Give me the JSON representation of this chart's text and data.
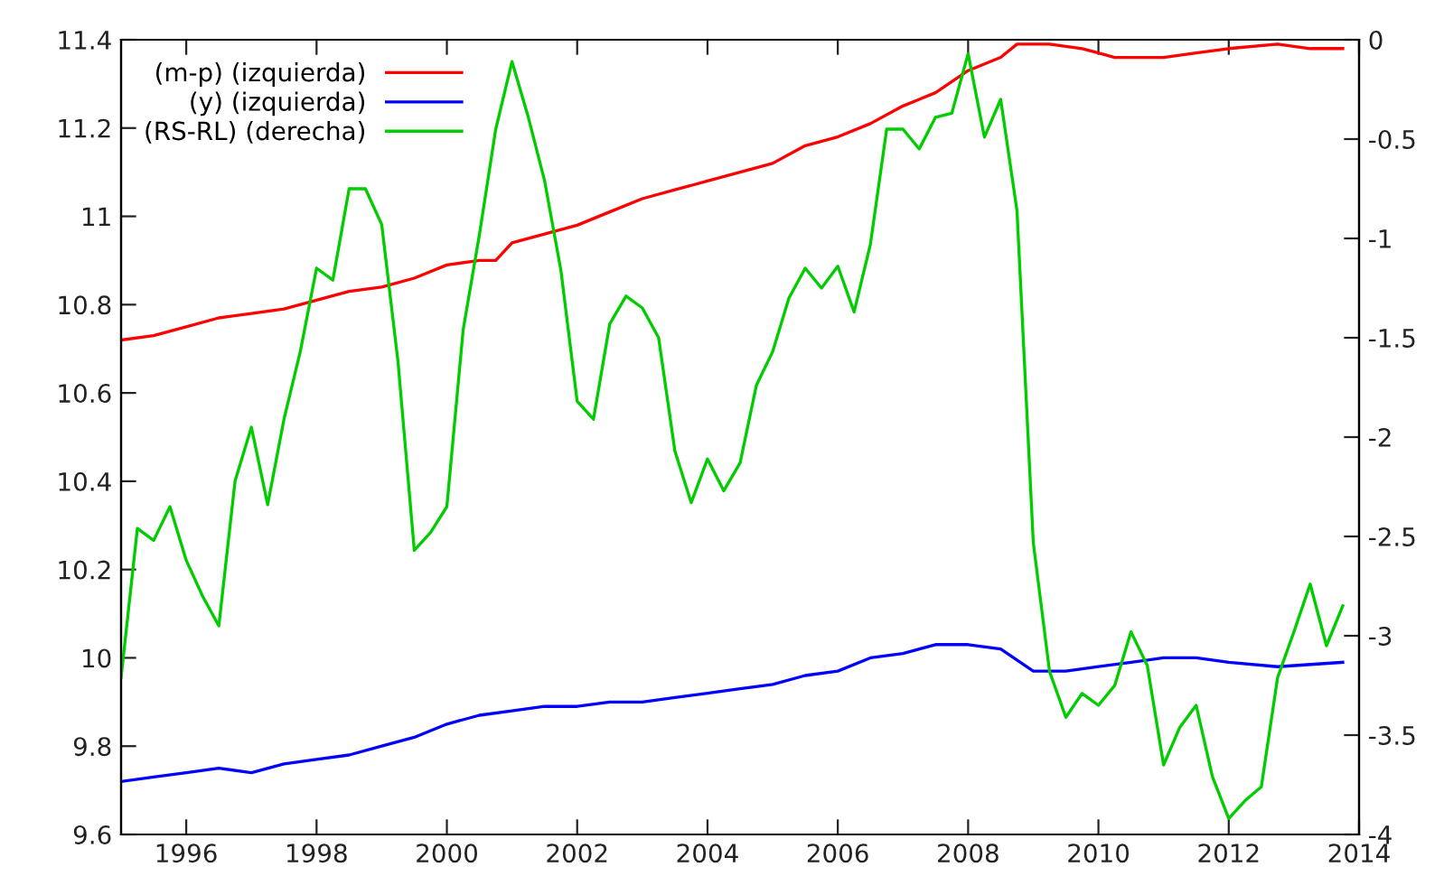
{
  "chart_data": {
    "type": "line",
    "legend": "top left",
    "grid": false,
    "xlim": [
      1995,
      2014
    ],
    "xticks": [
      1996,
      1998,
      2000,
      2002,
      2004,
      2006,
      2008,
      2010,
      2012,
      2014
    ],
    "ylim": [
      9.6,
      11.4
    ],
    "yticks": [
      9.6,
      9.8,
      10,
      10.2,
      10.4,
      10.6,
      10.8,
      11,
      11.2,
      11.4
    ],
    "y2lim": [
      -4,
      0
    ],
    "y2ticks": [
      -4,
      -3.5,
      -3,
      -2.5,
      -2,
      -1.5,
      -1,
      -0.5,
      0
    ],
    "series": [
      {
        "name": "(m-p) (izquierda)",
        "color": "#ff0000",
        "x": [
          1995,
          1995.5,
          1996,
          1996.5,
          1997,
          1997.5,
          1998,
          1998.5,
          1999,
          1999.5,
          2000,
          2000.5,
          2000.75,
          2001,
          2001.5,
          2002,
          2002.5,
          2003,
          2003.5,
          2004,
          2004.5,
          2005,
          2005.5,
          2006,
          2006.5,
          2007,
          2007.5,
          2008,
          2008.5,
          2008.75,
          2009.25,
          2009.75,
          2010,
          2010.25,
          2011,
          2011.5,
          2012,
          2012.75,
          2013.25,
          2013.75
        ],
        "values": [
          10.72,
          10.73,
          10.75,
          10.77,
          10.78,
          10.79,
          10.81,
          10.83,
          10.84,
          10.86,
          10.89,
          10.9,
          10.9,
          10.94,
          10.96,
          10.98,
          11.01,
          11.04,
          11.06,
          11.08,
          11.1,
          11.12,
          11.16,
          11.18,
          11.21,
          11.25,
          11.28,
          11.33,
          11.36,
          11.39,
          11.39,
          11.38,
          11.37,
          11.36,
          11.36,
          11.37,
          11.38,
          11.39,
          11.38,
          11.38
        ]
      },
      {
        "name": "(y) (izquierda)",
        "color": "#0000ff",
        "x": [
          1995,
          1995.5,
          1996,
          1996.5,
          1997,
          1997.5,
          1998,
          1998.5,
          1999,
          1999.5,
          2000,
          2000.5,
          2001,
          2001.5,
          2002,
          2002.5,
          2003,
          2003.5,
          2004,
          2004.5,
          2005,
          2005.5,
          2006,
          2006.5,
          2007,
          2007.5,
          2008,
          2008.5,
          2009,
          2009.5,
          2010,
          2010.5,
          2011,
          2011.5,
          2012,
          2012.75,
          2013.75
        ],
        "values": [
          9.72,
          9.73,
          9.74,
          9.75,
          9.74,
          9.76,
          9.77,
          9.78,
          9.8,
          9.82,
          9.85,
          9.87,
          9.88,
          9.89,
          9.89,
          9.9,
          9.9,
          9.91,
          9.92,
          9.93,
          9.94,
          9.96,
          9.97,
          10.0,
          10.01,
          10.03,
          10.03,
          10.02,
          9.97,
          9.97,
          9.98,
          9.99,
          10.0,
          10.0,
          9.99,
          9.98,
          9.99
        ]
      },
      {
        "name": "(RS-RL) (derecha)",
        "color": "#00cc00",
        "axis": "y2",
        "x": [
          1995,
          1995.25,
          1995.5,
          1995.75,
          1996,
          1996.25,
          1996.5,
          1996.75,
          1997,
          1997.25,
          1997.5,
          1997.75,
          1998,
          1998.25,
          1998.5,
          1998.75,
          1999,
          1999.25,
          1999.5,
          1999.75,
          2000,
          2000.25,
          2000.5,
          2000.75,
          2001,
          2001.25,
          2001.5,
          2001.75,
          2002,
          2002.25,
          2002.5,
          2002.75,
          2003,
          2003.25,
          2003.5,
          2003.75,
          2004,
          2004.25,
          2004.5,
          2004.75,
          2005,
          2005.25,
          2005.5,
          2005.75,
          2006,
          2006.25,
          2006.5,
          2006.75,
          2007,
          2007.25,
          2007.5,
          2007.75,
          2008,
          2008.25,
          2008.5,
          2008.75,
          2009,
          2009.25,
          2009.5,
          2009.75,
          2010,
          2010.25,
          2010.5,
          2010.75,
          2011,
          2011.25,
          2011.5,
          2011.75,
          2012,
          2012.25,
          2012.5,
          2012.75,
          2013,
          2013.25,
          2013.5,
          2013.75
        ],
        "values": [
          -3.21,
          -2.46,
          -2.52,
          -2.35,
          -2.62,
          -2.8,
          -2.95,
          -2.22,
          -1.95,
          -2.34,
          -1.91,
          -1.57,
          -1.15,
          -1.21,
          -0.75,
          -0.75,
          -0.93,
          -1.62,
          -2.57,
          -2.48,
          -2.35,
          -1.46,
          -0.98,
          -0.45,
          -0.11,
          -0.39,
          -0.71,
          -1.16,
          -1.82,
          -1.91,
          -1.43,
          -1.29,
          -1.35,
          -1.5,
          -2.07,
          -2.33,
          -2.11,
          -2.27,
          -2.13,
          -1.74,
          -1.57,
          -1.3,
          -1.15,
          -1.25,
          -1.14,
          -1.37,
          -1.03,
          -0.45,
          -0.45,
          -0.55,
          -0.39,
          -0.37,
          -0.07,
          -0.49,
          -0.3,
          -0.86,
          -2.53,
          -3.18,
          -3.41,
          -3.29,
          -3.35,
          -3.25,
          -2.98,
          -3.15,
          -3.65,
          -3.46,
          -3.35,
          -3.71,
          -3.92,
          -3.83,
          -3.76,
          -3.21,
          -2.98,
          -2.74,
          -3.05,
          -2.85
        ]
      }
    ]
  }
}
